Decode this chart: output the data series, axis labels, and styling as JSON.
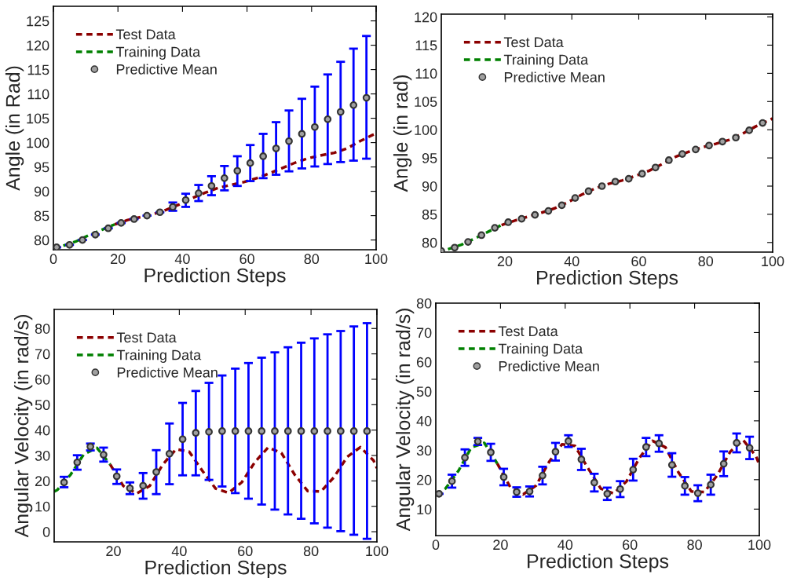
{
  "chart_data": [
    {
      "type": "line",
      "xlabel": "Prediction Steps",
      "ylabel": "Angle (in Rad)",
      "xlim": [
        0,
        100
      ],
      "ylim": [
        78,
        128
      ],
      "xticks": [
        0,
        20,
        40,
        60,
        80,
        100
      ],
      "yticks": [
        80,
        85,
        90,
        95,
        100,
        105,
        110,
        115,
        120,
        125
      ],
      "legend": "top left",
      "grid": false,
      "series": [
        {
          "name": "Test Data",
          "type": "line",
          "line_style": "dashed",
          "color": "#8b0000",
          "x": [
            19,
            23,
            27,
            31,
            35,
            39,
            43,
            47,
            51,
            55,
            59,
            63,
            67,
            71,
            75,
            79,
            83,
            87,
            91,
            95,
            99,
            100
          ],
          "values": [
            83.2,
            84.1,
            84.7,
            85.3,
            86.2,
            87.3,
            88.6,
            89.7,
            90.7,
            91.3,
            91.9,
            92.7,
            93.7,
            94.8,
            95.9,
            96.8,
            97.4,
            97.9,
            98.8,
            100.3,
            101.6,
            101.8
          ]
        },
        {
          "name": "Training Data",
          "type": "line",
          "line_style": "dashed",
          "color": "#008000",
          "x": [
            0,
            3,
            7,
            11,
            15,
            19
          ],
          "values": [
            78.2,
            78.8,
            79.7,
            81.0,
            82.1,
            83.2
          ]
        },
        {
          "name": "Predictive Mean",
          "type": "scatter",
          "marker": "circle",
          "color": "#a0a0a0",
          "x": [
            1,
            5,
            9,
            13,
            17,
            21,
            25,
            29,
            33,
            37,
            41,
            45,
            49,
            53,
            57,
            61,
            65,
            69,
            73,
            77,
            81,
            85,
            89,
            93,
            97
          ],
          "values": [
            78.5,
            79.0,
            80.0,
            81.1,
            82.4,
            83.5,
            84.3,
            85.0,
            85.7,
            86.8,
            88.2,
            89.6,
            91.1,
            92.7,
            94.2,
            95.8,
            97.2,
            98.8,
            100.3,
            101.8,
            103.2,
            104.8,
            106.3,
            107.7,
            109.2
          ],
          "errors": [
            null,
            null,
            null,
            null,
            null,
            null,
            null,
            null,
            null,
            [
              86.0,
              87.7
            ],
            [
              86.8,
              89.5
            ],
            [
              88.0,
              91.3
            ],
            [
              89.2,
              93.1
            ],
            [
              90.2,
              95.2
            ],
            [
              91.1,
              97.2
            ],
            [
              92.1,
              99.5
            ],
            [
              92.7,
              101.8
            ],
            [
              93.4,
              104.2
            ],
            [
              94.1,
              106.6
            ],
            [
              94.7,
              109.0
            ],
            [
              95.1,
              111.5
            ],
            [
              95.6,
              114.0
            ],
            [
              96.0,
              116.6
            ],
            [
              96.3,
              119.3
            ],
            [
              96.7,
              121.9
            ]
          ]
        }
      ]
    },
    {
      "type": "line",
      "xlabel": "Prediction Steps",
      "ylabel": "Angle (in rad)",
      "xlim": [
        1,
        100
      ],
      "ylim": [
        78.3,
        120.5
      ],
      "xticks": [
        20,
        40,
        60,
        80,
        100
      ],
      "yticks": [
        80,
        85,
        90,
        95,
        100,
        105,
        110,
        115,
        120
      ],
      "legend": "top left",
      "grid": false,
      "series": [
        {
          "name": "Test Data",
          "type": "line",
          "line_style": "dashed",
          "color": "#8b0000",
          "x": [
            19,
            23,
            27,
            31,
            35,
            39,
            43,
            47,
            51,
            55,
            59,
            63,
            67,
            71,
            75,
            79,
            83,
            87,
            91,
            95,
            99,
            100
          ],
          "values": [
            83.1,
            83.9,
            84.6,
            85.3,
            86.1,
            87.2,
            88.5,
            89.6,
            90.4,
            91.0,
            91.8,
            92.7,
            93.9,
            95.2,
            96.1,
            96.9,
            97.5,
            98.2,
            99.3,
            100.6,
            101.7,
            102.0
          ]
        },
        {
          "name": "Training Data",
          "type": "line",
          "line_style": "dashed",
          "color": "#008000",
          "x": [
            3,
            7,
            11,
            15,
            19
          ],
          "values": [
            78.8,
            79.6,
            80.7,
            81.9,
            83.1
          ]
        },
        {
          "name": "Predictive Mean",
          "type": "scatter",
          "marker": "circle",
          "color": "#a0a0a0",
          "x": [
            1,
            5,
            9,
            13,
            17,
            21,
            25,
            29,
            33,
            37,
            41,
            45,
            49,
            53,
            57,
            61,
            65,
            69,
            73,
            77,
            81,
            85,
            89,
            93,
            97
          ],
          "values": [
            78.5,
            79.1,
            80.1,
            81.3,
            82.6,
            83.6,
            84.2,
            84.9,
            85.6,
            86.6,
            87.9,
            89.1,
            90.0,
            90.8,
            91.3,
            92.2,
            93.3,
            94.6,
            95.7,
            96.5,
            97.2,
            97.9,
            98.6,
            99.9,
            101.2
          ]
        }
      ]
    },
    {
      "type": "line",
      "xlabel": "Prediction Steps",
      "ylabel": "Angular Velocity (in rad/s)",
      "xlim": [
        2,
        100
      ],
      "ylim": [
        -4,
        87.5
      ],
      "xticks": [
        20,
        40,
        60,
        80,
        100
      ],
      "yticks": [
        0,
        10,
        20,
        30,
        40,
        50,
        60,
        70,
        80
      ],
      "legend": "top left",
      "grid": false,
      "series": [
        {
          "name": "Test Data",
          "type": "line",
          "line_style": "dashed",
          "color": "#8b0000",
          "x": [
            19,
            23,
            27,
            31,
            35,
            39,
            43,
            47,
            51,
            55,
            59,
            63,
            67,
            71,
            75,
            79,
            83,
            87,
            91,
            95,
            99,
            100
          ],
          "values": [
            26.5,
            18,
            15,
            18,
            26.5,
            32.5,
            31.5,
            24,
            17,
            15.3,
            19.5,
            27.5,
            33.2,
            31,
            22.5,
            16,
            15.8,
            21.5,
            29.5,
            33.3,
            28,
            25
          ]
        },
        {
          "name": "Training Data",
          "type": "line",
          "line_style": "dashed",
          "color": "#008000",
          "x": [
            2,
            3,
            7,
            11,
            15,
            19
          ],
          "values": [
            15.8,
            16.5,
            22.5,
            30.5,
            33,
            26.5
          ]
        },
        {
          "name": "Predictive Mean",
          "type": "scatter",
          "marker": "circle",
          "color": "#a0a0a0",
          "x": [
            5,
            9,
            13,
            17,
            21,
            25,
            29,
            33,
            37,
            41,
            45,
            49,
            53,
            57,
            61,
            65,
            69,
            73,
            77,
            81,
            85,
            89,
            93,
            97
          ],
          "values": [
            19.4,
            27.3,
            33.5,
            30.3,
            21.8,
            17.1,
            18.1,
            23.5,
            30.7,
            36.4,
            38.9,
            39.3,
            39.6,
            39.6,
            39.6,
            39.6,
            39.6,
            39.6,
            39.6,
            39.6,
            39.6,
            39.6,
            39.6,
            39.6
          ],
          "errors": [
            [
              17.5,
              21.6
            ],
            [
              24.4,
              30.1
            ],
            [
              32.0,
              34.7
            ],
            [
              27.6,
              33.1
            ],
            [
              18.8,
              24.5
            ],
            [
              14.8,
              19.4
            ],
            [
              13.0,
              23.1
            ],
            [
              14.8,
              32.1
            ],
            [
              18.7,
              42.6
            ],
            [
              22.2,
              50.7
            ],
            [
              22.2,
              55.4
            ],
            [
              20.4,
              58.6
            ],
            [
              17.8,
              61.5
            ],
            [
              15.2,
              64.2
            ],
            [
              13.0,
              66.4
            ],
            [
              10.7,
              68.5
            ],
            [
              8.7,
              70.6
            ],
            [
              6.8,
              72.6
            ],
            [
              5.1,
              74.4
            ],
            [
              3.3,
              76.1
            ],
            [
              1.6,
              77.7
            ],
            [
              0.2,
              79.0
            ],
            [
              -1.2,
              80.8
            ],
            [
              -2.8,
              82.1
            ]
          ]
        }
      ]
    },
    {
      "type": "line",
      "xlabel": "Prediction Steps",
      "ylabel": "Angular Velocity (in rad/s)",
      "xlim": [
        0,
        100
      ],
      "ylim": [
        1,
        80
      ],
      "xticks": [
        0,
        20,
        40,
        60,
        80,
        100
      ],
      "yticks": [
        10,
        20,
        30,
        40,
        50,
        60,
        70,
        80
      ],
      "legend": "top left",
      "grid": false,
      "series": [
        {
          "name": "Test Data",
          "type": "line",
          "line_style": "dashed",
          "color": "#8b0000",
          "x": [
            19,
            23,
            27,
            31,
            35,
            39,
            43,
            47,
            51,
            55,
            59,
            63,
            67,
            71,
            75,
            79,
            83,
            87,
            91,
            95,
            99,
            100
          ],
          "values": [
            25.5,
            17.5,
            15,
            18,
            26,
            32,
            31.5,
            24,
            17,
            15.3,
            19.5,
            27.5,
            33.2,
            31,
            22.5,
            16,
            15.8,
            21.5,
            29.5,
            33.5,
            28,
            25
          ]
        },
        {
          "name": "Training Data",
          "type": "line",
          "line_style": "dashed",
          "color": "#008000",
          "x": [
            0,
            3,
            7,
            11,
            15,
            19
          ],
          "values": [
            15,
            17,
            23,
            31,
            32.5,
            25.5
          ]
        },
        {
          "name": "Predictive Mean",
          "type": "scatter",
          "marker": "circle",
          "color": "#a0a0a0",
          "x": [
            1,
            5,
            9,
            13,
            17,
            21,
            25,
            29,
            33,
            37,
            41,
            45,
            49,
            53,
            57,
            61,
            65,
            69,
            73,
            77,
            81,
            85,
            89,
            93,
            97
          ],
          "values": [
            15.2,
            19.5,
            27.5,
            33.0,
            29.3,
            20.9,
            15.8,
            16.0,
            21.4,
            29.5,
            33.1,
            26.9,
            19.0,
            15.2,
            16.8,
            23.4,
            31.1,
            32.3,
            25.0,
            17.9,
            15.4,
            18.3,
            25.4,
            32.5,
            30.8
          ],
          "errors": [
            null,
            2.2,
            2.8,
            1.2,
            2.9,
            2.8,
            1.6,
            1.7,
            3.0,
            3.0,
            2.0,
            3.6,
            3.0,
            2.1,
            2.7,
            3.7,
            3.1,
            2.8,
            4.0,
            3.0,
            2.7,
            3.4,
            4.2,
            3.2,
            3.8
          ]
        }
      ]
    }
  ]
}
